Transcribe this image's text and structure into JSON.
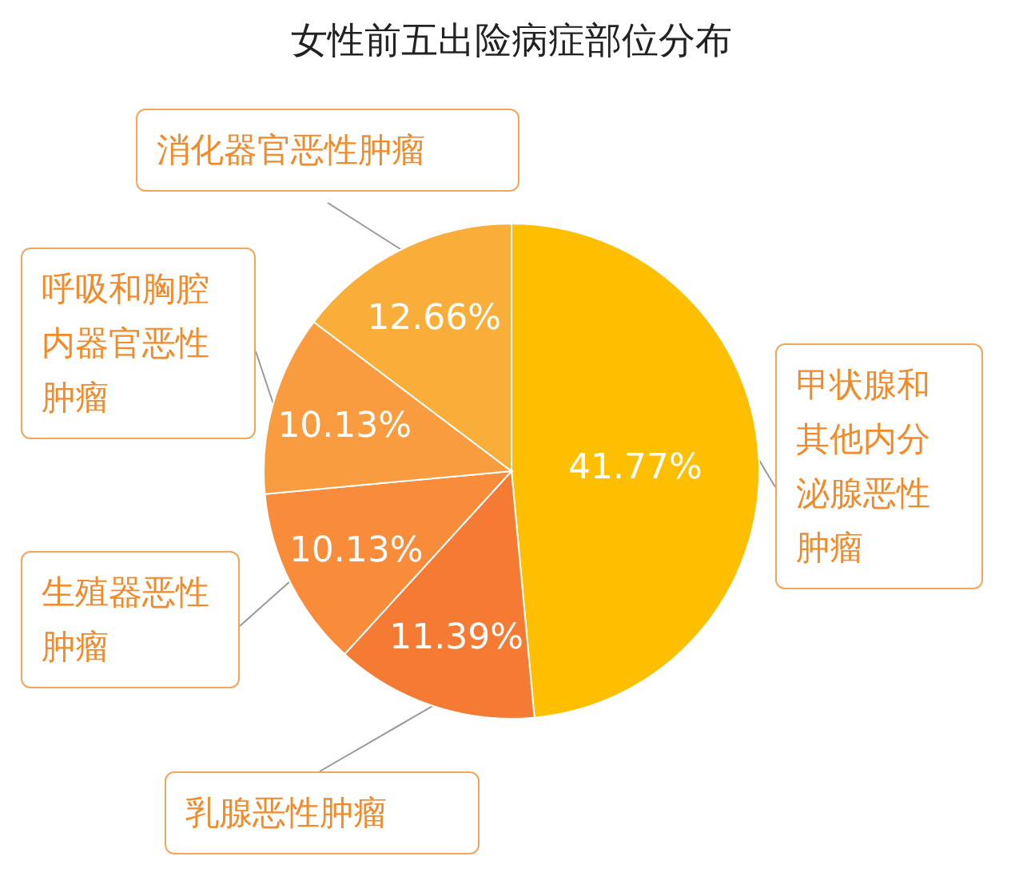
{
  "chart_data": {
    "type": "pie",
    "title": "女性前五出险病症部位分布",
    "categories": [
      "甲状腺和其他内分泌腺恶性肿瘤",
      "乳腺恶性肿瘤",
      "生殖器恶性肿瘤",
      "呼吸和胸腔内器官恶性肿瘤",
      "消化器官恶性肿瘤"
    ],
    "values": [
      41.77,
      11.39,
      10.13,
      10.13,
      12.66
    ],
    "value_labels": [
      "41.77%",
      "11.39%",
      "10.13%",
      "10.13%",
      "12.66%"
    ],
    "colors": [
      "#fdbf00",
      "#f57a34",
      "#f88c3a",
      "#f99c3f",
      "#f9ae3a"
    ]
  }
}
